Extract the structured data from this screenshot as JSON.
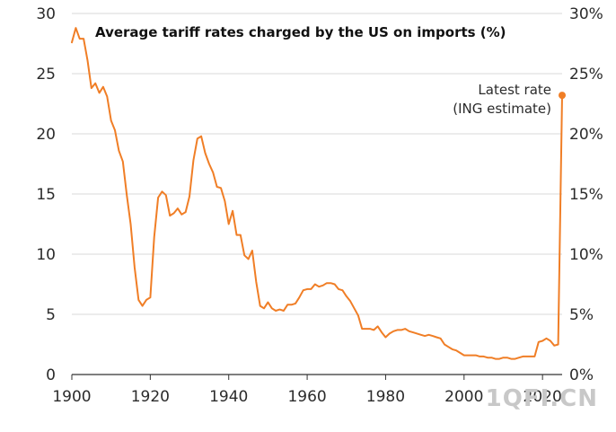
{
  "chart_data": {
    "type": "line",
    "title": "Average tariff rates charged by the US on imports (%)",
    "xlabel": "",
    "ylabel": "",
    "xlim": [
      1900,
      2025
    ],
    "ylim": [
      0,
      30
    ],
    "grid": "horizontal",
    "x_ticks": [
      "1900",
      "1920",
      "1940",
      "1960",
      "1980",
      "2000",
      "2020"
    ],
    "y_ticks_left": [
      "0",
      "5",
      "10",
      "15",
      "20",
      "25",
      "30"
    ],
    "y_ticks_right": [
      "0%",
      "5%",
      "10%",
      "15%",
      "20%",
      "25%",
      "30%"
    ],
    "series": [
      {
        "color": "#f07e26",
        "x": [
          1900,
          1901,
          1902,
          1903,
          1904,
          1905,
          1906,
          1907,
          1908,
          1909,
          1910,
          1911,
          1912,
          1913,
          1914,
          1915,
          1916,
          1917,
          1918,
          1919,
          1920,
          1921,
          1922,
          1923,
          1924,
          1925,
          1926,
          1927,
          1928,
          1929,
          1930,
          1931,
          1932,
          1933,
          1934,
          1935,
          1936,
          1937,
          1938,
          1939,
          1940,
          1941,
          1942,
          1943,
          1944,
          1945,
          1946,
          1947,
          1948,
          1949,
          1950,
          1951,
          1952,
          1953,
          1954,
          1955,
          1956,
          1957,
          1958,
          1959,
          1960,
          1961,
          1962,
          1963,
          1964,
          1965,
          1966,
          1967,
          1968,
          1969,
          1970,
          1971,
          1972,
          1973,
          1974,
          1975,
          1976,
          1977,
          1978,
          1979,
          1980,
          1981,
          1982,
          1983,
          1984,
          1985,
          1986,
          1987,
          1988,
          1989,
          1990,
          1991,
          1992,
          1993,
          1994,
          1995,
          1996,
          1997,
          1998,
          1999,
          2000,
          2001,
          2002,
          2003,
          2004,
          2005,
          2006,
          2007,
          2008,
          2009,
          2010,
          2011,
          2012,
          2013,
          2014,
          2015,
          2016,
          2017,
          2018,
          2019,
          2020,
          2021,
          2022,
          2023,
          2024,
          2025
        ],
        "y": [
          27.6,
          28.8,
          27.9,
          27.9,
          26.1,
          23.8,
          24.2,
          23.4,
          23.9,
          23.1,
          21.1,
          20.3,
          18.6,
          17.7,
          14.9,
          12.5,
          8.9,
          6.2,
          5.7,
          6.2,
          6.4,
          11.4,
          14.7,
          15.2,
          14.9,
          13.2,
          13.4,
          13.8,
          13.3,
          13.5,
          14.8,
          17.8,
          19.6,
          19.8,
          18.4,
          17.5,
          16.8,
          15.6,
          15.5,
          14.4,
          12.5,
          13.6,
          11.6,
          11.6,
          9.9,
          9.6,
          10.3,
          7.7,
          5.7,
          5.5,
          6.0,
          5.5,
          5.3,
          5.4,
          5.3,
          5.8,
          5.8,
          5.9,
          6.4,
          7.0,
          7.1,
          7.1,
          7.5,
          7.3,
          7.4,
          7.6,
          7.6,
          7.5,
          7.1,
          7.0,
          6.5,
          6.1,
          5.5,
          4.9,
          3.8,
          3.8,
          3.8,
          3.7,
          4.0,
          3.5,
          3.1,
          3.4,
          3.6,
          3.7,
          3.7,
          3.8,
          3.6,
          3.5,
          3.4,
          3.3,
          3.2,
          3.3,
          3.2,
          3.1,
          3.0,
          2.5,
          2.3,
          2.1,
          2.0,
          1.8,
          1.6,
          1.6,
          1.6,
          1.6,
          1.5,
          1.5,
          1.4,
          1.4,
          1.3,
          1.3,
          1.4,
          1.4,
          1.3,
          1.3,
          1.4,
          1.5,
          1.5,
          1.5,
          1.5,
          2.7,
          2.8,
          3.0,
          2.8,
          2.4,
          2.5,
          23.2
        ]
      }
    ],
    "annotation": {
      "line1": "Latest rate",
      "line2": "(ING estimate)",
      "x": 2025,
      "y": 23.2
    }
  },
  "watermark": "1QFI.CN",
  "colors": {
    "line": "#f07e26",
    "grid": "#d9d9d9",
    "axis": "#333333",
    "watermark": "#c8c8c8"
  }
}
